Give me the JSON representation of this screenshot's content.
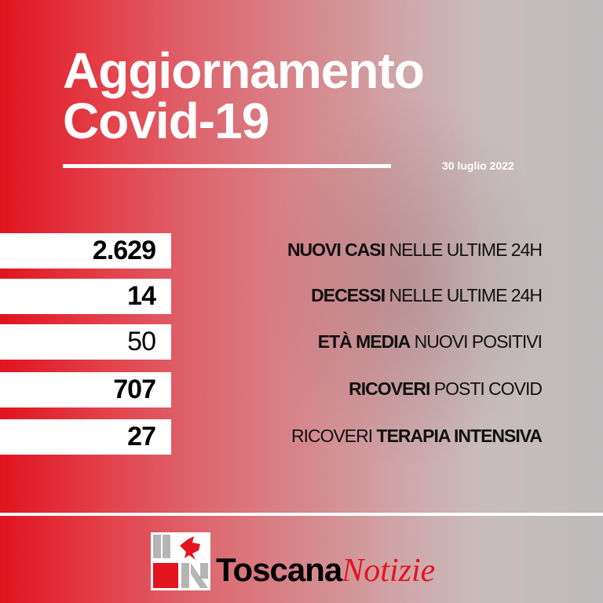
{
  "title": {
    "line1": "Aggiornamento",
    "line2": "Covid-19"
  },
  "date": "30 luglio 2022",
  "stats": [
    {
      "value": "2.629",
      "bold": "NUOVI CASI",
      "normal": " NELLE ULTIME 24H"
    },
    {
      "value": "14",
      "bold": "DECESSI",
      "normal": " NELLE ULTIME 24H"
    },
    {
      "value": "50",
      "bold": "ETÀ MEDIA",
      "normal": " NUOVI POSITIVI"
    },
    {
      "value": "707",
      "bold": "RICOVERI",
      "normal": " POSTI COVID"
    },
    {
      "value": "27",
      "normal_before": "RICOVERI ",
      "bold": "TERAPIA INTENSIVA"
    }
  ],
  "brand": {
    "part1": "Toscana",
    "part2": "Notizie"
  },
  "colors": {
    "accent": "#e3141f",
    "text": "#111111"
  }
}
